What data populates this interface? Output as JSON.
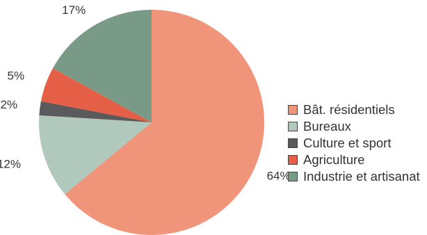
{
  "chart_data": {
    "type": "pie",
    "categories": [
      "Bât. résidentiels",
      "Bureaux",
      "Culture et sport",
      "Agriculture",
      "Industrie et artisanat"
    ],
    "values": [
      64,
      12,
      2,
      5,
      17
    ],
    "value_labels": [
      "64%",
      "12%",
      "2%",
      "5%",
      "17%"
    ],
    "colors": [
      "#F0957A",
      "#B0C9BC",
      "#5A5A5C",
      "#E45F45",
      "#7A9A88"
    ],
    "legend_position": "right",
    "start": "12 o'clock",
    "direction": "clockwise"
  },
  "legend": {
    "items": [
      {
        "label": "Bât. résidentiels",
        "color": "#F0957A"
      },
      {
        "label": "Bureaux",
        "color": "#B0C9BC"
      },
      {
        "label": "Culture et sport",
        "color": "#5A5A5C"
      },
      {
        "label": "Agriculture",
        "color": "#E45F45"
      },
      {
        "label": "Industrie et artisanat",
        "color": "#7A9A88"
      }
    ]
  }
}
